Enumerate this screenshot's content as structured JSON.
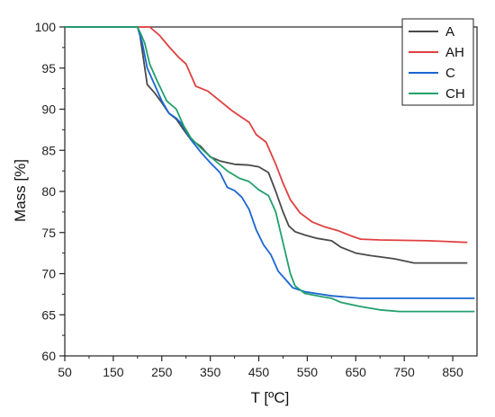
{
  "chart_data": {
    "type": "line",
    "title": "",
    "xlabel": "T [ºC]",
    "ylabel": "Mass [%]",
    "xlim": [
      50,
      900
    ],
    "ylim": [
      60,
      100
    ],
    "x_ticks": [
      50,
      150,
      250,
      350,
      450,
      550,
      650,
      750,
      850
    ],
    "y_ticks": [
      60,
      65,
      70,
      75,
      80,
      85,
      90,
      95,
      100
    ],
    "grid": false,
    "legend_position": "top-right",
    "series": [
      {
        "name": "A",
        "color": "#4a4a4a",
        "points": [
          [
            50,
            100
          ],
          [
            200,
            100
          ],
          [
            205,
            99
          ],
          [
            210,
            97
          ],
          [
            220,
            93
          ],
          [
            235,
            92
          ],
          [
            250,
            90.8
          ],
          [
            265,
            89.5
          ],
          [
            280,
            88.8
          ],
          [
            295,
            87.5
          ],
          [
            310,
            86.3
          ],
          [
            330,
            85.5
          ],
          [
            350,
            84.2
          ],
          [
            370,
            83.7
          ],
          [
            400,
            83.3
          ],
          [
            430,
            83.2
          ],
          [
            450,
            83
          ],
          [
            470,
            82.3
          ],
          [
            485,
            80
          ],
          [
            500,
            77.5
          ],
          [
            512,
            75.8
          ],
          [
            525,
            75.1
          ],
          [
            545,
            74.7
          ],
          [
            570,
            74.3
          ],
          [
            600,
            74
          ],
          [
            620,
            73.2
          ],
          [
            650,
            72.5
          ],
          [
            680,
            72.2
          ],
          [
            730,
            71.8
          ],
          [
            770,
            71.3
          ],
          [
            880,
            71.3
          ]
        ]
      },
      {
        "name": "AH",
        "color": "#e04040",
        "points": [
          [
            50,
            100
          ],
          [
            225,
            100
          ],
          [
            245,
            99
          ],
          [
            265,
            97.6
          ],
          [
            285,
            96.3
          ],
          [
            300,
            95.5
          ],
          [
            320,
            92.8
          ],
          [
            345,
            92.2
          ],
          [
            370,
            91
          ],
          [
            395,
            89.8
          ],
          [
            430,
            88.4
          ],
          [
            445,
            86.9
          ],
          [
            465,
            86
          ],
          [
            485,
            83.3
          ],
          [
            500,
            81
          ],
          [
            515,
            79
          ],
          [
            535,
            77.4
          ],
          [
            560,
            76.3
          ],
          [
            585,
            75.7
          ],
          [
            615,
            75.2
          ],
          [
            640,
            74.6
          ],
          [
            660,
            74.2
          ],
          [
            700,
            74.1
          ],
          [
            800,
            74
          ],
          [
            880,
            73.8
          ]
        ]
      },
      {
        "name": "C",
        "color": "#1a66d1",
        "points": [
          [
            50,
            100
          ],
          [
            200,
            100
          ],
          [
            210,
            98
          ],
          [
            220,
            95
          ],
          [
            235,
            93
          ],
          [
            250,
            91
          ],
          [
            265,
            89.5
          ],
          [
            280,
            88.9
          ],
          [
            290,
            88.3
          ],
          [
            310,
            86.3
          ],
          [
            330,
            84.8
          ],
          [
            350,
            83.5
          ],
          [
            370,
            82.3
          ],
          [
            385,
            80.5
          ],
          [
            400,
            80.1
          ],
          [
            415,
            79.3
          ],
          [
            430,
            77.8
          ],
          [
            445,
            75.3
          ],
          [
            460,
            73.5
          ],
          [
            475,
            72.3
          ],
          [
            490,
            70.3
          ],
          [
            505,
            69.3
          ],
          [
            520,
            68.3
          ],
          [
            545,
            67.8
          ],
          [
            600,
            67.3
          ],
          [
            660,
            67
          ],
          [
            895,
            67
          ]
        ]
      },
      {
        "name": "CH",
        "color": "#22a06b",
        "points": [
          [
            50,
            100
          ],
          [
            200,
            100
          ],
          [
            208,
            99
          ],
          [
            215,
            98
          ],
          [
            225,
            95.5
          ],
          [
            240,
            93.5
          ],
          [
            260,
            91
          ],
          [
            280,
            90
          ],
          [
            295,
            88
          ],
          [
            310,
            86.5
          ],
          [
            330,
            85.3
          ],
          [
            345,
            84.5
          ],
          [
            365,
            83.5
          ],
          [
            385,
            82.5
          ],
          [
            410,
            81.6
          ],
          [
            430,
            81.2
          ],
          [
            450,
            80.2
          ],
          [
            470,
            79.5
          ],
          [
            485,
            77.5
          ],
          [
            495,
            75
          ],
          [
            505,
            72.5
          ],
          [
            515,
            70
          ],
          [
            525,
            68.5
          ],
          [
            545,
            67.6
          ],
          [
            580,
            67.2
          ],
          [
            600,
            67
          ],
          [
            620,
            66.5
          ],
          [
            660,
            66
          ],
          [
            700,
            65.6
          ],
          [
            740,
            65.4
          ],
          [
            895,
            65.4
          ]
        ]
      }
    ]
  }
}
